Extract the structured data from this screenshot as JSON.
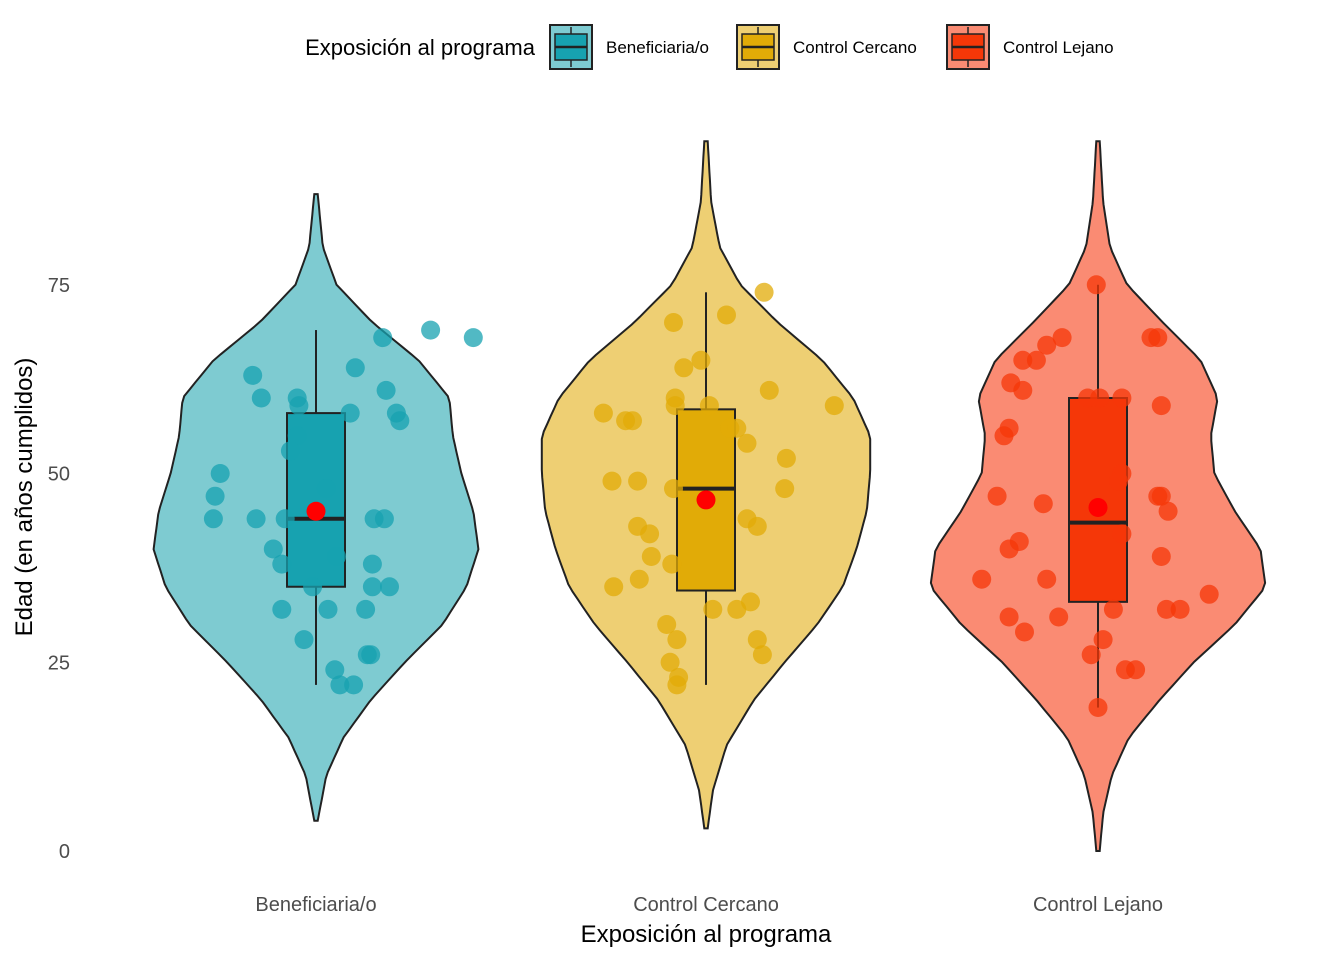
{
  "chart_data": {
    "type": "violin",
    "xlabel": "Exposición al programa",
    "ylabel": "Edad (en años cumplidos)",
    "ylim": [
      0,
      90
    ],
    "y_ticks": [
      0,
      25,
      50,
      75
    ],
    "grid": false,
    "legend": {
      "title": "Exposición al programa",
      "position": "top",
      "entries": [
        "Beneficiaria/o",
        "Control Cercano",
        "Control Lejano"
      ]
    },
    "mean_marker_color": "#ff0000",
    "categories": [
      "Beneficiaria/o",
      "Control Cercano",
      "Control Lejano"
    ],
    "series": [
      {
        "name": "Beneficiaria/o",
        "fill": "#17a2b0",
        "violin_fill": "#7ecbd1",
        "box": {
          "min": 22,
          "q1": 35,
          "median": 44,
          "q3": 58,
          "max": 69
        },
        "mean": 45,
        "violin_range": [
          4,
          87
        ],
        "density": [
          [
            4,
            0.01
          ],
          [
            10,
            0.06
          ],
          [
            15,
            0.16
          ],
          [
            20,
            0.32
          ],
          [
            25,
            0.52
          ],
          [
            30,
            0.74
          ],
          [
            35,
            0.88
          ],
          [
            40,
            0.95
          ],
          [
            45,
            0.92
          ],
          [
            50,
            0.85
          ],
          [
            55,
            0.8
          ],
          [
            60,
            0.78
          ],
          [
            65,
            0.6
          ],
          [
            70,
            0.33
          ],
          [
            75,
            0.12
          ],
          [
            80,
            0.04
          ],
          [
            87,
            0.01
          ]
        ],
        "points": [
          [
            0.39,
            68
          ],
          [
            -0.37,
            63
          ],
          [
            -0.32,
            60
          ],
          [
            -0.11,
            60
          ],
          [
            -0.1,
            59
          ],
          [
            0.23,
            64
          ],
          [
            0.41,
            61
          ],
          [
            0.47,
            58
          ],
          [
            0.49,
            57
          ],
          [
            0.2,
            58
          ],
          [
            -0.11,
            55
          ],
          [
            -0.15,
            53
          ],
          [
            -0.56,
            50
          ],
          [
            -0.59,
            47
          ],
          [
            -0.6,
            44
          ],
          [
            -0.35,
            44
          ],
          [
            -0.18,
            44
          ],
          [
            0.06,
            48
          ],
          [
            0.34,
            44
          ],
          [
            0.4,
            44
          ],
          [
            -0.25,
            40
          ],
          [
            -0.2,
            38
          ],
          [
            0.12,
            39
          ],
          [
            0.33,
            38
          ],
          [
            0.43,
            35
          ],
          [
            0.33,
            35
          ],
          [
            -0.2,
            32
          ],
          [
            0.07,
            32
          ],
          [
            0.29,
            32
          ],
          [
            -0.07,
            28
          ],
          [
            0.32,
            26
          ],
          [
            0.3,
            26
          ],
          [
            0.11,
            24
          ],
          [
            0.14,
            22
          ],
          [
            0.22,
            22
          ],
          [
            0.92,
            68
          ],
          [
            0.67,
            69
          ],
          [
            -0.02,
            35
          ]
        ]
      },
      {
        "name": "Control Cercano",
        "fill": "#e1ab07",
        "violin_fill": "#eecf73",
        "box": {
          "min": 22,
          "q1": 34.5,
          "median": 48,
          "q3": 58.5,
          "max": 74
        },
        "mean": 46.5,
        "violin_range": [
          3,
          94
        ],
        "density": [
          [
            3,
            0.01
          ],
          [
            8,
            0.04
          ],
          [
            14,
            0.12
          ],
          [
            20,
            0.28
          ],
          [
            25,
            0.46
          ],
          [
            30,
            0.65
          ],
          [
            35,
            0.8
          ],
          [
            40,
            0.88
          ],
          [
            45,
            0.94
          ],
          [
            50,
            0.96
          ],
          [
            55,
            0.96
          ],
          [
            60,
            0.86
          ],
          [
            65,
            0.68
          ],
          [
            70,
            0.42
          ],
          [
            75,
            0.2
          ],
          [
            80,
            0.08
          ],
          [
            86,
            0.03
          ],
          [
            94,
            0.01
          ]
        ],
        "points": [
          [
            0.34,
            74
          ],
          [
            -0.6,
            58
          ],
          [
            -0.47,
            57
          ],
          [
            -0.43,
            57
          ],
          [
            -0.18,
            60
          ],
          [
            -0.18,
            59
          ],
          [
            0.02,
            59
          ],
          [
            0.14,
            56
          ],
          [
            0.18,
            56
          ],
          [
            0.37,
            61
          ],
          [
            0.12,
            71
          ],
          [
            -0.19,
            70
          ],
          [
            -0.13,
            64
          ],
          [
            -0.03,
            65
          ],
          [
            0.24,
            54
          ],
          [
            0.47,
            52
          ],
          [
            0.46,
            48
          ],
          [
            -0.55,
            49
          ],
          [
            -0.4,
            49
          ],
          [
            -0.19,
            48
          ],
          [
            -0.4,
            43
          ],
          [
            -0.33,
            42
          ],
          [
            -0.32,
            39
          ],
          [
            0.24,
            44
          ],
          [
            0.3,
            43
          ],
          [
            -0.2,
            38
          ],
          [
            -0.54,
            35
          ],
          [
            -0.39,
            36
          ],
          [
            0.18,
            32
          ],
          [
            0.26,
            33
          ],
          [
            -0.23,
            30
          ],
          [
            -0.17,
            28
          ],
          [
            -0.21,
            25
          ],
          [
            -0.16,
            23
          ],
          [
            -0.17,
            22
          ],
          [
            0.3,
            28
          ],
          [
            0.33,
            26
          ],
          [
            0.04,
            32
          ],
          [
            0.75,
            59
          ]
        ]
      },
      {
        "name": "Control Lejano",
        "fill": "#f53708",
        "violin_fill": "#fa8b73",
        "box": {
          "min": 19,
          "q1": 33,
          "median": 43.5,
          "q3": 60,
          "max": 75
        },
        "mean": 45.5,
        "violin_range": [
          0,
          94
        ],
        "density": [
          [
            0,
            0.01
          ],
          [
            5,
            0.03
          ],
          [
            10,
            0.08
          ],
          [
            15,
            0.18
          ],
          [
            20,
            0.36
          ],
          [
            25,
            0.56
          ],
          [
            30,
            0.8
          ],
          [
            35,
            0.98
          ],
          [
            40,
            0.95
          ],
          [
            45,
            0.8
          ],
          [
            50,
            0.68
          ],
          [
            55,
            0.66
          ],
          [
            60,
            0.7
          ],
          [
            65,
            0.6
          ],
          [
            70,
            0.38
          ],
          [
            75,
            0.17
          ],
          [
            80,
            0.07
          ],
          [
            86,
            0.03
          ],
          [
            94,
            0.01
          ]
        ],
        "points": [
          [
            -0.01,
            75
          ],
          [
            -0.21,
            68
          ],
          [
            -0.3,
            67
          ],
          [
            -0.36,
            65
          ],
          [
            -0.44,
            65
          ],
          [
            -0.51,
            62
          ],
          [
            -0.44,
            61
          ],
          [
            -0.06,
            60
          ],
          [
            0.01,
            60
          ],
          [
            0.14,
            60
          ],
          [
            0.31,
            68
          ],
          [
            0.35,
            68
          ],
          [
            0.37,
            59
          ],
          [
            -0.52,
            56
          ],
          [
            -0.55,
            55
          ],
          [
            0.14,
            50
          ],
          [
            0.12,
            49
          ],
          [
            0.35,
            47
          ],
          [
            0.37,
            47
          ],
          [
            0.41,
            45
          ],
          [
            -0.59,
            47
          ],
          [
            -0.32,
            46
          ],
          [
            -0.46,
            41
          ],
          [
            -0.52,
            40
          ],
          [
            0.14,
            42
          ],
          [
            -0.68,
            36
          ],
          [
            -0.3,
            36
          ],
          [
            0.37,
            39
          ],
          [
            -0.52,
            31
          ],
          [
            -0.43,
            29
          ],
          [
            -0.23,
            31
          ],
          [
            0.09,
            32
          ],
          [
            0.4,
            32
          ],
          [
            0.48,
            32
          ],
          [
            0.65,
            34
          ],
          [
            0.03,
            28
          ],
          [
            -0.04,
            26
          ],
          [
            0.16,
            24
          ],
          [
            0.22,
            24
          ],
          [
            0.0,
            19
          ]
        ]
      }
    ]
  }
}
